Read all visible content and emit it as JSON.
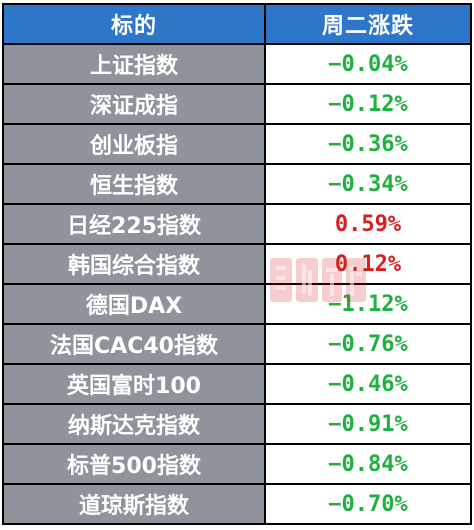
{
  "header": {
    "col_name": "标的",
    "col_change": "周二涨跌"
  },
  "colors": {
    "header_bg": "#2e77c8",
    "name_bg": "#8f949c",
    "negative": "#20b040",
    "positive": "#d81e1e"
  },
  "rows": [
    {
      "name": "上证指数",
      "change": "−0.04%",
      "trend": "negative"
    },
    {
      "name": "深证成指",
      "change": "−0.12%",
      "trend": "negative"
    },
    {
      "name": "创业板指",
      "change": "−0.36%",
      "trend": "negative"
    },
    {
      "name": "恒生指数",
      "change": "−0.34%",
      "trend": "negative"
    },
    {
      "name": "日经225指数",
      "change": "0.59%",
      "trend": "positive"
    },
    {
      "name": "韩国综合指数",
      "change": "0.12%",
      "trend": "positive"
    },
    {
      "name": "德国DAX",
      "change": "−1.12%",
      "trend": "negative"
    },
    {
      "name": "法国CAC40指数",
      "change": "−0.76%",
      "trend": "negative"
    },
    {
      "name": "英国富时100",
      "change": "−0.46%",
      "trend": "negative"
    },
    {
      "name": "纳斯达克指数",
      "change": "−0.91%",
      "trend": "negative"
    },
    {
      "name": "标普500指数",
      "change": "−0.84%",
      "trend": "negative"
    },
    {
      "name": "道琼斯指数",
      "change": "−0.70%",
      "trend": "negative"
    }
  ],
  "watermark": {
    "icon": "cls-logo-watermark-icon"
  }
}
